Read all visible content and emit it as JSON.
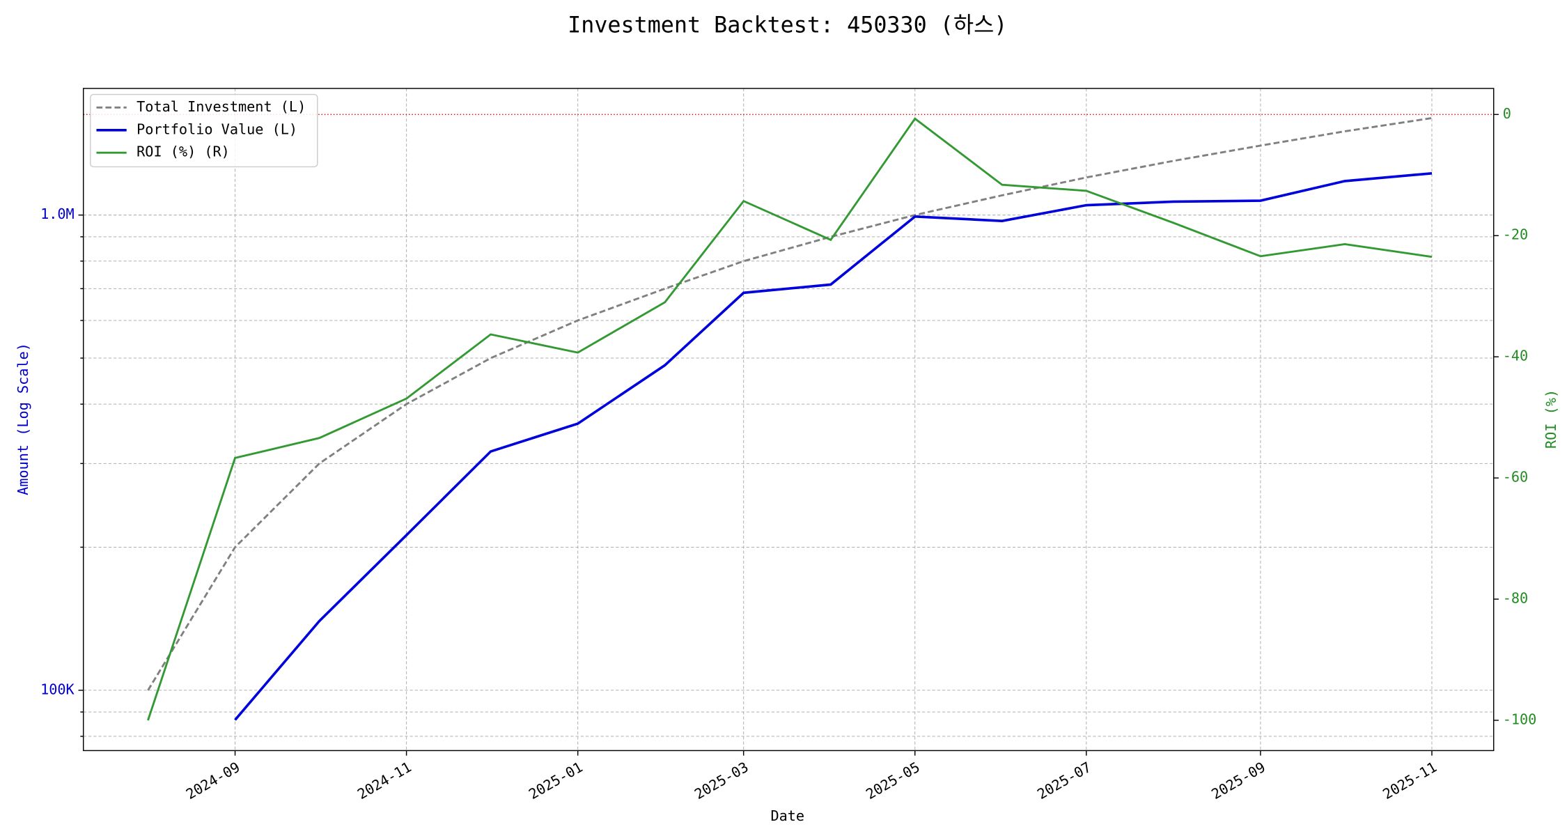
{
  "chart_data": {
    "type": "line",
    "title": "Investment Backtest: 450330 (하스)",
    "xlabel": "Date",
    "ylabel": "Amount (Log Scale)",
    "y2label": "ROI (%)",
    "ylabel_color": "#0000cc",
    "y2label_color": "#228b22",
    "x": [
      "2024-08",
      "2024-09",
      "2024-10",
      "2024-11",
      "2024-12",
      "2025-01",
      "2025-02",
      "2025-03",
      "2025-04",
      "2025-05",
      "2025-06",
      "2025-07",
      "2025-08",
      "2025-09",
      "2025-10",
      "2025-11"
    ],
    "xlim": [
      "2024-07-09",
      "2025-11-23"
    ],
    "xticks": [
      "2024-09",
      "2024-11",
      "2025-01",
      "2025-03",
      "2025-05",
      "2025-07",
      "2025-09",
      "2025-11"
    ],
    "ylog": true,
    "ylim": [
      74650,
      1847000
    ],
    "yticks": [
      {
        "value": 100000,
        "label": "100K"
      },
      {
        "value": 1000000,
        "label": "1.0M"
      }
    ],
    "yminorticks": [
      80000,
      90000,
      200000,
      300000,
      400000,
      500000,
      600000,
      700000,
      800000,
      900000
    ],
    "y2lim": [
      -105,
      4.3
    ],
    "y2ticks": [
      0,
      -20,
      -40,
      -60,
      -80,
      -100
    ],
    "grid": true,
    "legend": "upper left",
    "reference_line": {
      "value": 0,
      "axis": "y2",
      "color": "#dd0000"
    },
    "series": [
      {
        "name": "Total Investment (L)",
        "color": "#808080",
        "dash": true,
        "axis": "y",
        "values": [
          100000,
          200000,
          300000,
          400000,
          500000,
          600000,
          700000,
          800000,
          900000,
          1000000,
          1100000,
          1200000,
          1300000,
          1400000,
          1500000,
          1600000
        ]
      },
      {
        "name": "Portfolio Value (L)",
        "color": "#0000dd",
        "axis": "y",
        "values": [
          null,
          86600,
          139800,
          212000,
          318000,
          364000,
          483000,
          686000,
          714000,
          993000,
          972000,
          1049000,
          1067000,
          1072000,
          1179000,
          1224000
        ]
      },
      {
        "name": "ROI (%) (R)",
        "color": "#339933",
        "axis": "y2",
        "values": [
          -100,
          -56.7,
          -53.4,
          -46.9,
          -36.3,
          -39.3,
          -31.0,
          -14.3,
          -20.7,
          -0.7,
          -11.6,
          -12.6,
          -17.9,
          -23.4,
          -21.4,
          -23.5
        ]
      }
    ]
  }
}
